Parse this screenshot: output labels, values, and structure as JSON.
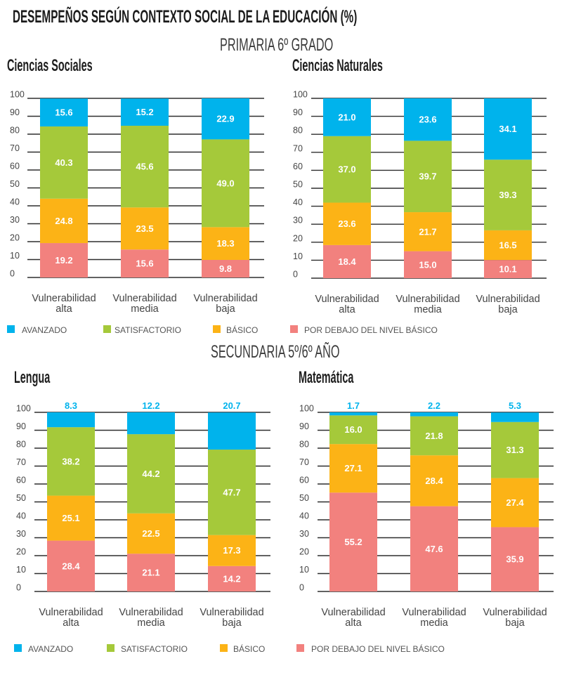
{
  "header": {
    "title": "DESEMPEÑOS SEGÚN CONTEXTO SOCIAL DE LA EDUCACIÓN (%)"
  },
  "sections": [
    {
      "title": "PRIMARIA 6º GRADO"
    },
    {
      "title": "SECUNDARIA 5º/6º AÑO"
    }
  ],
  "legend": {
    "items": [
      {
        "label": "AVANZADO",
        "color": "#00b3ec"
      },
      {
        "label": "SATISFACTORIO",
        "color": "#a5c93a"
      },
      {
        "label": "BÁSICO",
        "color": "#fcb316"
      },
      {
        "label": "POR DEBAJO DEL NIVEL BÁSICO",
        "color": "#f2817e"
      }
    ]
  },
  "chart_data": [
    {
      "type": "bar",
      "stacked": true,
      "section": "PRIMARIA 6º GRADO",
      "title": "Ciencias Sociales",
      "xlabel": "",
      "ylabel": "",
      "categories": [
        "Vulnerabilidad alta",
        "Vulnerabilidad media",
        "Vulnerabilidad baja"
      ],
      "ylim": [
        0,
        100
      ],
      "yticks": [
        0,
        10,
        20,
        30,
        40,
        50,
        60,
        70,
        80,
        90,
        100
      ],
      "grid": true,
      "legend": "bottom",
      "value_decimals": 1,
      "series": [
        {
          "name": "POR DEBAJO DEL NIVEL BÁSICO",
          "color": "#f2817e",
          "values": [
            19.2,
            15.6,
            9.8
          ]
        },
        {
          "name": "BÁSICO",
          "color": "#fcb316",
          "values": [
            24.8,
            23.5,
            18.3
          ]
        },
        {
          "name": "SATISFACTORIO",
          "color": "#a5c93a",
          "values": [
            40.3,
            45.6,
            49.0
          ]
        },
        {
          "name": "AVANZADO",
          "color": "#00b3ec",
          "values": [
            15.6,
            15.2,
            22.9
          ]
        }
      ]
    },
    {
      "type": "bar",
      "stacked": true,
      "section": "PRIMARIA 6º GRADO",
      "title": "Ciencias Naturales",
      "xlabel": "",
      "ylabel": "",
      "categories": [
        "Vulnerabilidad alta",
        "Vulnerabilidad media",
        "Vulnerabilidad baja"
      ],
      "ylim": [
        0,
        100
      ],
      "yticks": [
        0,
        10,
        20,
        30,
        40,
        50,
        60,
        70,
        80,
        90,
        100
      ],
      "grid": true,
      "legend": "bottom",
      "value_decimals": 1,
      "series": [
        {
          "name": "POR DEBAJO DEL NIVEL BÁSICO",
          "color": "#f2817e",
          "values": [
            18.4,
            15.0,
            10.1
          ]
        },
        {
          "name": "BÁSICO",
          "color": "#fcb316",
          "values": [
            23.6,
            21.7,
            16.5
          ]
        },
        {
          "name": "SATISFACTORIO",
          "color": "#a5c93a",
          "values": [
            37.0,
            39.7,
            39.3
          ]
        },
        {
          "name": "AVANZADO",
          "color": "#00b3ec",
          "values": [
            21.0,
            23.6,
            34.1
          ]
        }
      ]
    },
    {
      "type": "bar",
      "stacked": true,
      "section": "SECUNDARIA 5º/6º AÑO",
      "title": "Lengua",
      "xlabel": "",
      "ylabel": "",
      "categories": [
        "Vulnerabilidad alta",
        "Vulnerabilidad media",
        "Vulnerabilidad baja"
      ],
      "ylim": [
        0,
        100
      ],
      "yticks": [
        0,
        10,
        20,
        30,
        40,
        50,
        60,
        70,
        80,
        90,
        100
      ],
      "grid": true,
      "legend": "bottom",
      "value_decimals": 1,
      "series": [
        {
          "name": "POR DEBAJO DEL NIVEL BÁSICO",
          "color": "#f2817e",
          "values": [
            28.4,
            21.1,
            14.2
          ]
        },
        {
          "name": "BÁSICO",
          "color": "#fcb316",
          "values": [
            25.1,
            22.5,
            17.3
          ]
        },
        {
          "name": "SATISFACTORIO",
          "color": "#a5c93a",
          "values": [
            38.2,
            44.2,
            47.7
          ]
        },
        {
          "name": "AVANZADO",
          "color": "#00b3ec",
          "values": [
            8.3,
            12.2,
            20.7
          ]
        }
      ]
    },
    {
      "type": "bar",
      "stacked": true,
      "section": "SECUNDARIA 5º/6º AÑO",
      "title": "Matemática",
      "xlabel": "",
      "ylabel": "",
      "categories": [
        "Vulnerabilidad alta",
        "Vulnerabilidad media",
        "Vulnerabilidad baja"
      ],
      "ylim": [
        0,
        100
      ],
      "yticks": [
        0,
        10,
        20,
        30,
        40,
        50,
        60,
        70,
        80,
        90,
        100
      ],
      "grid": true,
      "legend": "bottom",
      "value_decimals": 1,
      "series": [
        {
          "name": "POR DEBAJO DEL NIVEL BÁSICO",
          "color": "#f2817e",
          "values": [
            55.2,
            47.6,
            35.9
          ]
        },
        {
          "name": "BÁSICO",
          "color": "#fcb316",
          "values": [
            27.1,
            28.4,
            27.4
          ]
        },
        {
          "name": "SATISFACTORIO",
          "color": "#a5c93a",
          "values": [
            16.0,
            21.8,
            31.3
          ]
        },
        {
          "name": "AVANZADO",
          "color": "#00b3ec",
          "values": [
            1.7,
            2.2,
            5.3
          ]
        }
      ]
    }
  ]
}
